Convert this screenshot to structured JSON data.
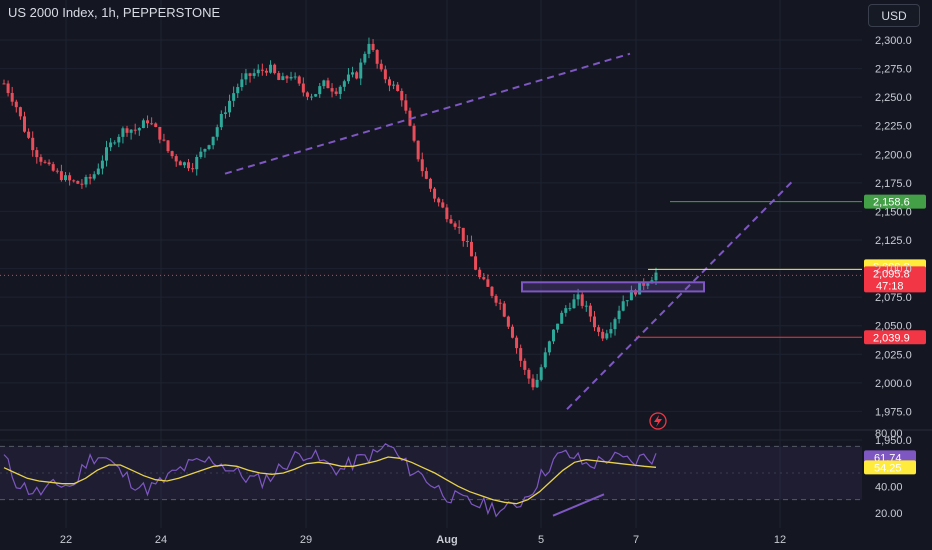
{
  "header": {
    "title": "US 2000 Index, 1h, PEPPERSTONE",
    "currency": "USD"
  },
  "colors": {
    "up": "#2fa89a",
    "down": "#ea4d5a",
    "purple": "#7e57c2",
    "green_line": "#43a047",
    "red_line": "#f23645",
    "yellow_line": "#ffeb3b",
    "rsi_line": "#7e57c2",
    "rsi_ma": "#e8d24c"
  },
  "chart_data": {
    "type": "candlestick",
    "y_range": [
      1940,
      2310
    ],
    "price_ticks": [
      "2,300.0",
      "2,275.0",
      "2,250.0",
      "2,225.0",
      "2,200.0",
      "2,175.0",
      "2,150.0",
      "2,125.0",
      "2,100.0",
      "2,075.0",
      "2,050.0",
      "2,025.0",
      "2,000.0",
      "1,975.0",
      "1,950.0"
    ],
    "date_ticks": [
      "22",
      "24",
      "29",
      "Aug",
      "5",
      "7",
      "12"
    ],
    "rsi_ticks": [
      "80.00",
      "60.00",
      "40.00",
      "20.00"
    ],
    "rsi_range": [
      12,
      84
    ],
    "rsi_bands": [
      30,
      70
    ],
    "price_path": [
      2262,
      2245,
      2218,
      2200,
      2188,
      2182,
      2176,
      2174,
      2180,
      2198,
      2214,
      2223,
      2221,
      2230,
      2218,
      2200,
      2193,
      2190,
      2203,
      2218,
      2239,
      2258,
      2268,
      2272,
      2276,
      2263,
      2270,
      2255,
      2252,
      2262,
      2256,
      2266,
      2270,
      2300,
      2272,
      2262,
      2250,
      2212,
      2182,
      2162,
      2148,
      2138,
      2118,
      2092,
      2080,
      2068,
      2043,
      2012,
      1996,
      2025,
      2052,
      2068,
      2074,
      2060,
      2040,
      2052,
      2072,
      2080,
      2088,
      2096
    ],
    "levels": [
      {
        "value": 2158.6,
        "label": "2,158.6",
        "color": "#43a047"
      },
      {
        "value": 2099.3,
        "label": "2,099.3",
        "color": "#ffeb3b"
      },
      {
        "value": 2095.8,
        "label": "2,095.8",
        "sublabel": "47:18",
        "color": "#f23645"
      },
      {
        "value": 2039.9,
        "label": "2,039.9",
        "color": "#f23645"
      }
    ],
    "rsi_value": {
      "label": "61.74",
      "value": 61.74
    },
    "rsi_ma_value": {
      "label": "54.25",
      "value": 54.25
    },
    "rsi_path": [
      62,
      44,
      38,
      35,
      39,
      42,
      40,
      58,
      64,
      60,
      50,
      44,
      38,
      40,
      46,
      52,
      56,
      58,
      60,
      55,
      50,
      46,
      44,
      48,
      56,
      62,
      66,
      60,
      55,
      52,
      58,
      62,
      64,
      72,
      60,
      52,
      48,
      40,
      34,
      30,
      28,
      26,
      24,
      22,
      26,
      34,
      46,
      58,
      64,
      62,
      56,
      58,
      62,
      60,
      58,
      62,
      61.74
    ],
    "rsi_ma_path": [
      54,
      50,
      46,
      44,
      43,
      42,
      42,
      46,
      52,
      56,
      56,
      52,
      48,
      45,
      44,
      46,
      49,
      52,
      55,
      56,
      55,
      52,
      50,
      49,
      50,
      53,
      57,
      58,
      57,
      55,
      55,
      57,
      59,
      62,
      61,
      58,
      54,
      50,
      45,
      40,
      36,
      33,
      30,
      28,
      27,
      30,
      36,
      44,
      52,
      58,
      60,
      59,
      58,
      57,
      56,
      55,
      54.25
    ]
  }
}
